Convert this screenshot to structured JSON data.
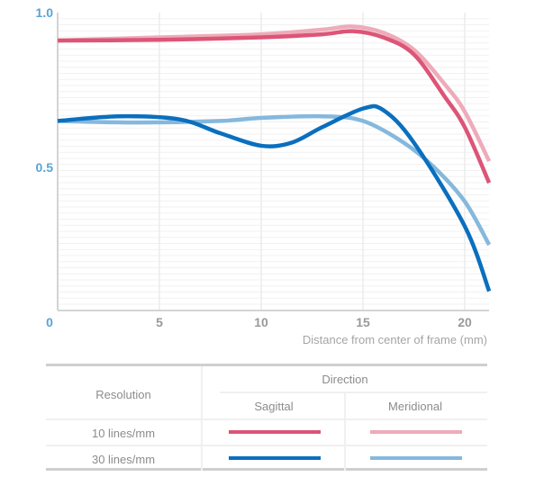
{
  "chart_data": {
    "type": "line",
    "title": "",
    "xlabel": "Distance from center of frame (mm)",
    "ylabel": "",
    "xlim": [
      0,
      21.2
    ],
    "ylim": [
      0.04,
      1.0
    ],
    "x_ticks": [
      0,
      5,
      10,
      15,
      20
    ],
    "x_tick_labels": [
      "0",
      "5",
      "10",
      "15",
      "20"
    ],
    "y_ticks": [
      0.5,
      1.0
    ],
    "y_tick_labels": [
      "0.5",
      "1.0"
    ],
    "grid": true,
    "legend_placement": "bottom-table",
    "series": [
      {
        "name": "10 lines/mm Meridional",
        "resolution": "10 lines/mm",
        "direction": "Meridional",
        "color": "#eeabb9",
        "x": [
          0,
          5,
          10,
          13,
          14.5,
          16,
          17.5,
          19,
          20,
          21.2
        ],
        "y": [
          0.91,
          0.92,
          0.93,
          0.945,
          0.955,
          0.935,
          0.88,
          0.77,
          0.68,
          0.52
        ]
      },
      {
        "name": "10 lines/mm Sagittal",
        "resolution": "10 lines/mm",
        "direction": "Sagittal",
        "color": "#dc5577",
        "x": [
          0,
          5,
          10,
          13,
          14.5,
          16,
          17.5,
          19,
          20,
          21.2
        ],
        "y": [
          0.91,
          0.912,
          0.92,
          0.93,
          0.94,
          0.92,
          0.865,
          0.73,
          0.63,
          0.45
        ]
      },
      {
        "name": "30 lines/mm Meridional",
        "resolution": "30 lines/mm",
        "direction": "Meridional",
        "color": "#85b8dd",
        "x": [
          0,
          4,
          8,
          10,
          13,
          15,
          17,
          18.5,
          20,
          21.2
        ],
        "y": [
          0.65,
          0.645,
          0.65,
          0.66,
          0.665,
          0.65,
          0.58,
          0.5,
          0.39,
          0.25
        ]
      },
      {
        "name": "30 lines/mm Sagittal",
        "resolution": "30 lines/mm",
        "direction": "Sagittal",
        "color": "#0a6fbe",
        "x": [
          0,
          3,
          6,
          8,
          10,
          11.5,
          13,
          15,
          16,
          17.5,
          20,
          21.2
        ],
        "y": [
          0.65,
          0.665,
          0.655,
          0.61,
          0.57,
          0.58,
          0.63,
          0.69,
          0.685,
          0.58,
          0.31,
          0.1
        ]
      }
    ]
  },
  "legend": {
    "resolution_header": "Resolution",
    "direction_header": "Direction",
    "columns": [
      "Sagittal",
      "Meridional"
    ],
    "rows": [
      {
        "label": "10 lines/mm",
        "sagittal_color": "#dc5577",
        "meridional_color": "#eeabb9"
      },
      {
        "label": "30 lines/mm",
        "sagittal_color": "#0a6fbe",
        "meridional_color": "#85b8dd"
      }
    ]
  }
}
